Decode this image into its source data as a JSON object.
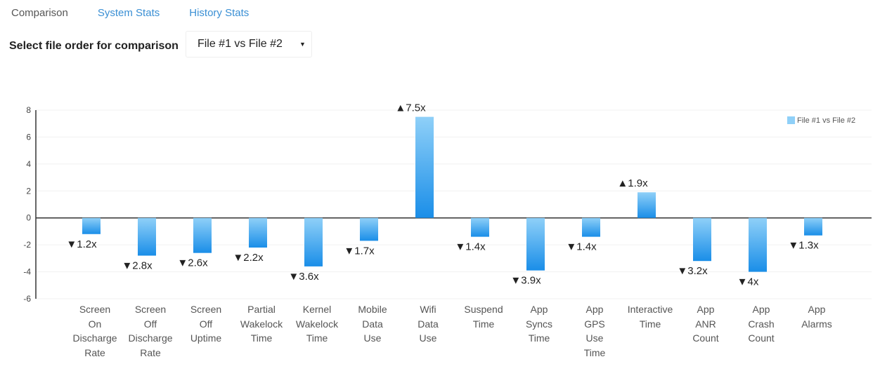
{
  "tabs": [
    {
      "label": "Comparison",
      "active": true
    },
    {
      "label": "System Stats",
      "active": false
    },
    {
      "label": "History Stats",
      "active": false
    }
  ],
  "file_order": {
    "label": "Select file order for comparison",
    "selected": "File #1 vs File #2",
    "arrow_icon": "triangle-down-icon"
  },
  "chart_data": {
    "type": "bar",
    "categories": [
      "Screen On Discharge Rate",
      "Screen Off Discharge Rate",
      "Screen Off Uptime",
      "Partial Wakelock Time",
      "Kernel Wakelock Time",
      "Mobile Data Use",
      "Wifi Data Use",
      "Suspend Time",
      "App Syncs Time",
      "App GPS Use Time",
      "Interactive Time",
      "App ANR Count",
      "App Crash Count",
      "App Alarms"
    ],
    "category_lines": [
      [
        "Screen",
        "On",
        "Discharge",
        "Rate"
      ],
      [
        "Screen",
        "Off",
        "Discharge",
        "Rate"
      ],
      [
        "Screen",
        "Off",
        "Uptime"
      ],
      [
        "Partial",
        "Wakelock",
        "Time"
      ],
      [
        "Kernel",
        "Wakelock",
        "Time"
      ],
      [
        "Mobile",
        "Data",
        "Use"
      ],
      [
        "Wifi",
        "Data",
        "Use"
      ],
      [
        "Suspend",
        "Time"
      ],
      [
        "App",
        "Syncs",
        "Time"
      ],
      [
        "App",
        "GPS",
        "Use",
        "Time"
      ],
      [
        "Interactive",
        "Time"
      ],
      [
        "App",
        "ANR",
        "Count"
      ],
      [
        "App",
        "Crash",
        "Count"
      ],
      [
        "App",
        "Alarms"
      ]
    ],
    "series": [
      {
        "name": "File #1 vs File #2",
        "values": [
          -1.2,
          -2.8,
          -2.6,
          -2.2,
          -3.6,
          -1.7,
          7.5,
          -1.4,
          -3.9,
          -1.4,
          1.9,
          -3.2,
          -4,
          -1.3
        ],
        "data_labels": [
          "▼1.2x",
          "▼2.8x",
          "▼2.6x",
          "▼2.2x",
          "▼3.6x",
          "▼1.7x",
          "▲7.5x",
          "▼1.4x",
          "▼3.9x",
          "▼1.4x",
          "▲1.9x",
          "▼3.2x",
          "▼4x",
          "▼1.3x"
        ]
      }
    ],
    "ylim": [
      -6,
      8
    ],
    "yticks": [
      8,
      6,
      4,
      2,
      0,
      -2,
      -4,
      -6
    ],
    "grid": true,
    "legend": "top-right",
    "colors": {
      "bar_top": "#8fd0f8",
      "bar_bottom": "#1a8ee8",
      "legend": "#8fd0f8"
    }
  }
}
